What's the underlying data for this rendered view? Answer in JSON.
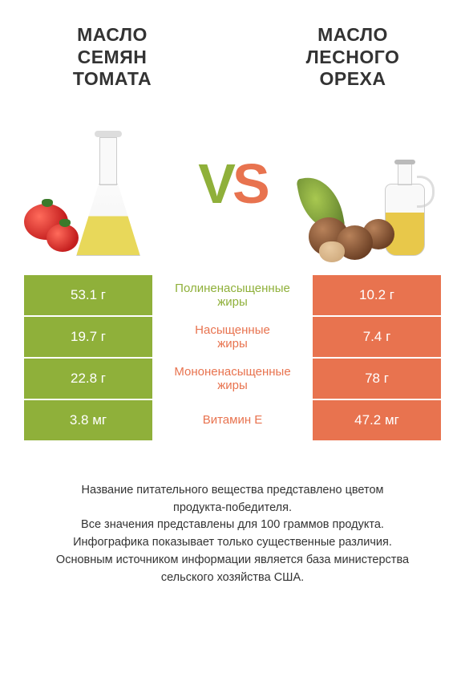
{
  "left": {
    "title": "МАСЛО\nСЕМЯН\nТОМАТА"
  },
  "right": {
    "title": "МАСЛО\nЛЕСНОГО\nОРЕХА"
  },
  "vs": {
    "v": "V",
    "s": "S"
  },
  "colors": {
    "left_bg": "#8fb03a",
    "right_bg": "#e8734f",
    "mid_left_text": "#8fb03a",
    "mid_right_text": "#e8734f",
    "neutral_text": "#333333"
  },
  "rows": [
    {
      "left": "53.1 г",
      "label": "Полиненасыщенные\nжиры",
      "right": "10.2 г",
      "winner": "left"
    },
    {
      "left": "19.7 г",
      "label": "Насыщенные\nжиры",
      "right": "7.4 г",
      "winner": "right"
    },
    {
      "left": "22.8 г",
      "label": "Мононенасыщенные\nжиры",
      "right": "78 г",
      "winner": "right"
    },
    {
      "left": "3.8 мг",
      "label": "Витамин E",
      "right": "47.2 мг",
      "winner": "right"
    }
  ],
  "footer": "Название питательного вещества представлено цветом\nпродукта-победителя.\nВсе значения представлены для 100 граммов продукта.\nИнфографика показывает только существенные различия.\nОсновным источником информации является база министерства\nсельского хозяйства США."
}
